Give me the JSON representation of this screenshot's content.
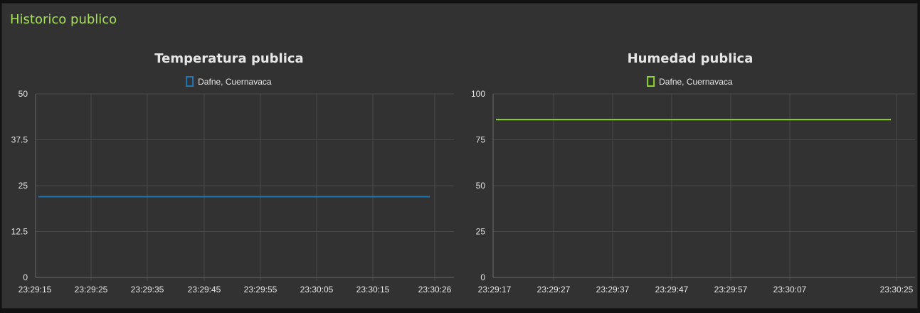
{
  "group": {
    "title": "Historico publico"
  },
  "colors": {
    "temperature": "#1f77b4",
    "humidity": "#8cd628",
    "text": "#e6e6e6"
  },
  "chart_data": [
    {
      "type": "line",
      "title": "Temperatura publica",
      "xlabel": "",
      "ylabel": "",
      "ylim": [
        0,
        50
      ],
      "yticks": [
        "0",
        "12.5",
        "25",
        "37.5",
        "50"
      ],
      "xticks": [
        "23:29:15",
        "23:29:25",
        "23:29:35",
        "23:29:45",
        "23:29:55",
        "23:30:05",
        "23:30:15",
        "23:30:26"
      ],
      "grid": true,
      "legend_position": "top-center",
      "series": [
        {
          "name": "Dafne, Cuernavaca",
          "color": "#1f77b4",
          "x": [
            "23:29:15",
            "23:30:26"
          ],
          "y": [
            22,
            22
          ]
        }
      ]
    },
    {
      "type": "line",
      "title": "Humedad publica",
      "xlabel": "",
      "ylabel": "",
      "ylim": [
        0,
        100
      ],
      "yticks": [
        "0",
        "25",
        "50",
        "75",
        "100"
      ],
      "xticks": [
        "23:29:17",
        "23:29:27",
        "23:29:37",
        "23:29:47",
        "23:29:57",
        "23:30:07",
        "23:30:25"
      ],
      "grid": true,
      "legend_position": "top-center",
      "series": [
        {
          "name": "Dafne, Cuernavaca",
          "color": "#8cd628",
          "x": [
            "23:29:17",
            "23:30:25"
          ],
          "y": [
            86,
            86
          ]
        }
      ]
    }
  ]
}
